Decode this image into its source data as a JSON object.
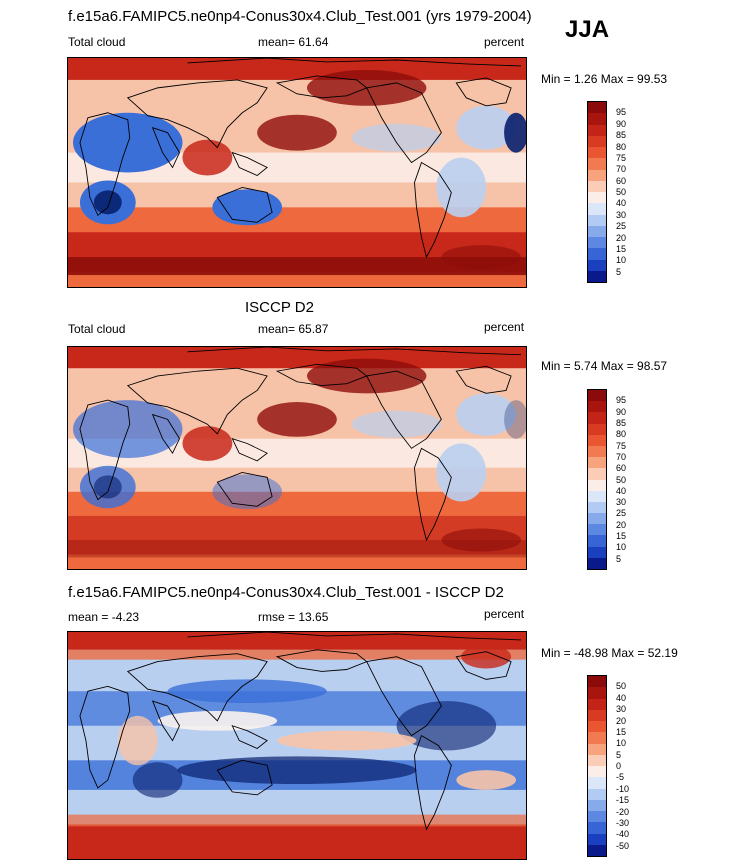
{
  "season": "JJA",
  "colors": {
    "blue_dark": "#08206e",
    "blue_mid": "#3a6fd8",
    "blue_light": "#b9cff0",
    "white": "#fbf3ef",
    "peach": "#f7c3a8",
    "orange": "#ee6a3e",
    "red": "#c8281a",
    "red_dark": "#8e0d0a"
  },
  "panels": [
    {
      "title": "f.e15a6.FAMIPC5.ne0np4-Conus30x4.Club_Test.001 (yrs 1979-2004)",
      "left_label": "Total cloud",
      "center_label": "mean=  61.64",
      "right_label": "percent",
      "minmax": "Min =   1.26 Max =  99.53",
      "levels": [
        "95",
        "90",
        "85",
        "80",
        "75",
        "70",
        "60",
        "50",
        "40",
        "30",
        "25",
        "20",
        "15",
        "10",
        "5"
      ]
    },
    {
      "title": "ISCCP D2",
      "left_label": "Total cloud",
      "center_label": "mean=  65.87",
      "right_label": "percent",
      "minmax": "Min =   5.74 Max =  98.57",
      "levels": [
        "95",
        "90",
        "85",
        "80",
        "75",
        "70",
        "60",
        "50",
        "40",
        "30",
        "25",
        "20",
        "15",
        "10",
        "5"
      ]
    },
    {
      "title": "f.e15a6.FAMIPC5.ne0np4-Conus30x4.Club_Test.001 - ISCCP D2",
      "left_label": "mean =  -4.23",
      "center_label": "rmse =  13.65",
      "right_label": "percent",
      "minmax": "Min = -48.98 Max =  52.19",
      "levels": [
        "50",
        "40",
        "30",
        "20",
        "15",
        "10",
        "5",
        "0",
        "-5",
        "-10",
        "-15",
        "-20",
        "-30",
        "-40",
        "-50"
      ]
    }
  ],
  "chart_data": [
    {
      "type": "heatmap",
      "title": "f.e15a6.FAMIPC5.ne0np4-Conus30x4.Club_Test.001 (yrs 1979-2004)",
      "variable": "Total cloud",
      "units": "percent",
      "mean": 61.64,
      "min": 1.26,
      "max": 99.53,
      "contour_levels": [
        5,
        10,
        15,
        20,
        25,
        30,
        40,
        50,
        60,
        70,
        75,
        80,
        85,
        90,
        95
      ]
    },
    {
      "type": "heatmap",
      "title": "ISCCP D2",
      "variable": "Total cloud",
      "units": "percent",
      "mean": 65.87,
      "min": 5.74,
      "max": 98.57,
      "contour_levels": [
        5,
        10,
        15,
        20,
        25,
        30,
        40,
        50,
        60,
        70,
        75,
        80,
        85,
        90,
        95
      ]
    },
    {
      "type": "heatmap",
      "title": "f.e15a6.FAMIPC5.ne0np4-Conus30x4.Club_Test.001 - ISCCP D2",
      "units": "percent",
      "mean": -4.23,
      "rmse": 13.65,
      "min": -48.98,
      "max": 52.19,
      "contour_levels": [
        -50,
        -40,
        -30,
        -20,
        -15,
        -10,
        -5,
        0,
        5,
        10,
        15,
        20,
        30,
        40,
        50
      ]
    }
  ]
}
